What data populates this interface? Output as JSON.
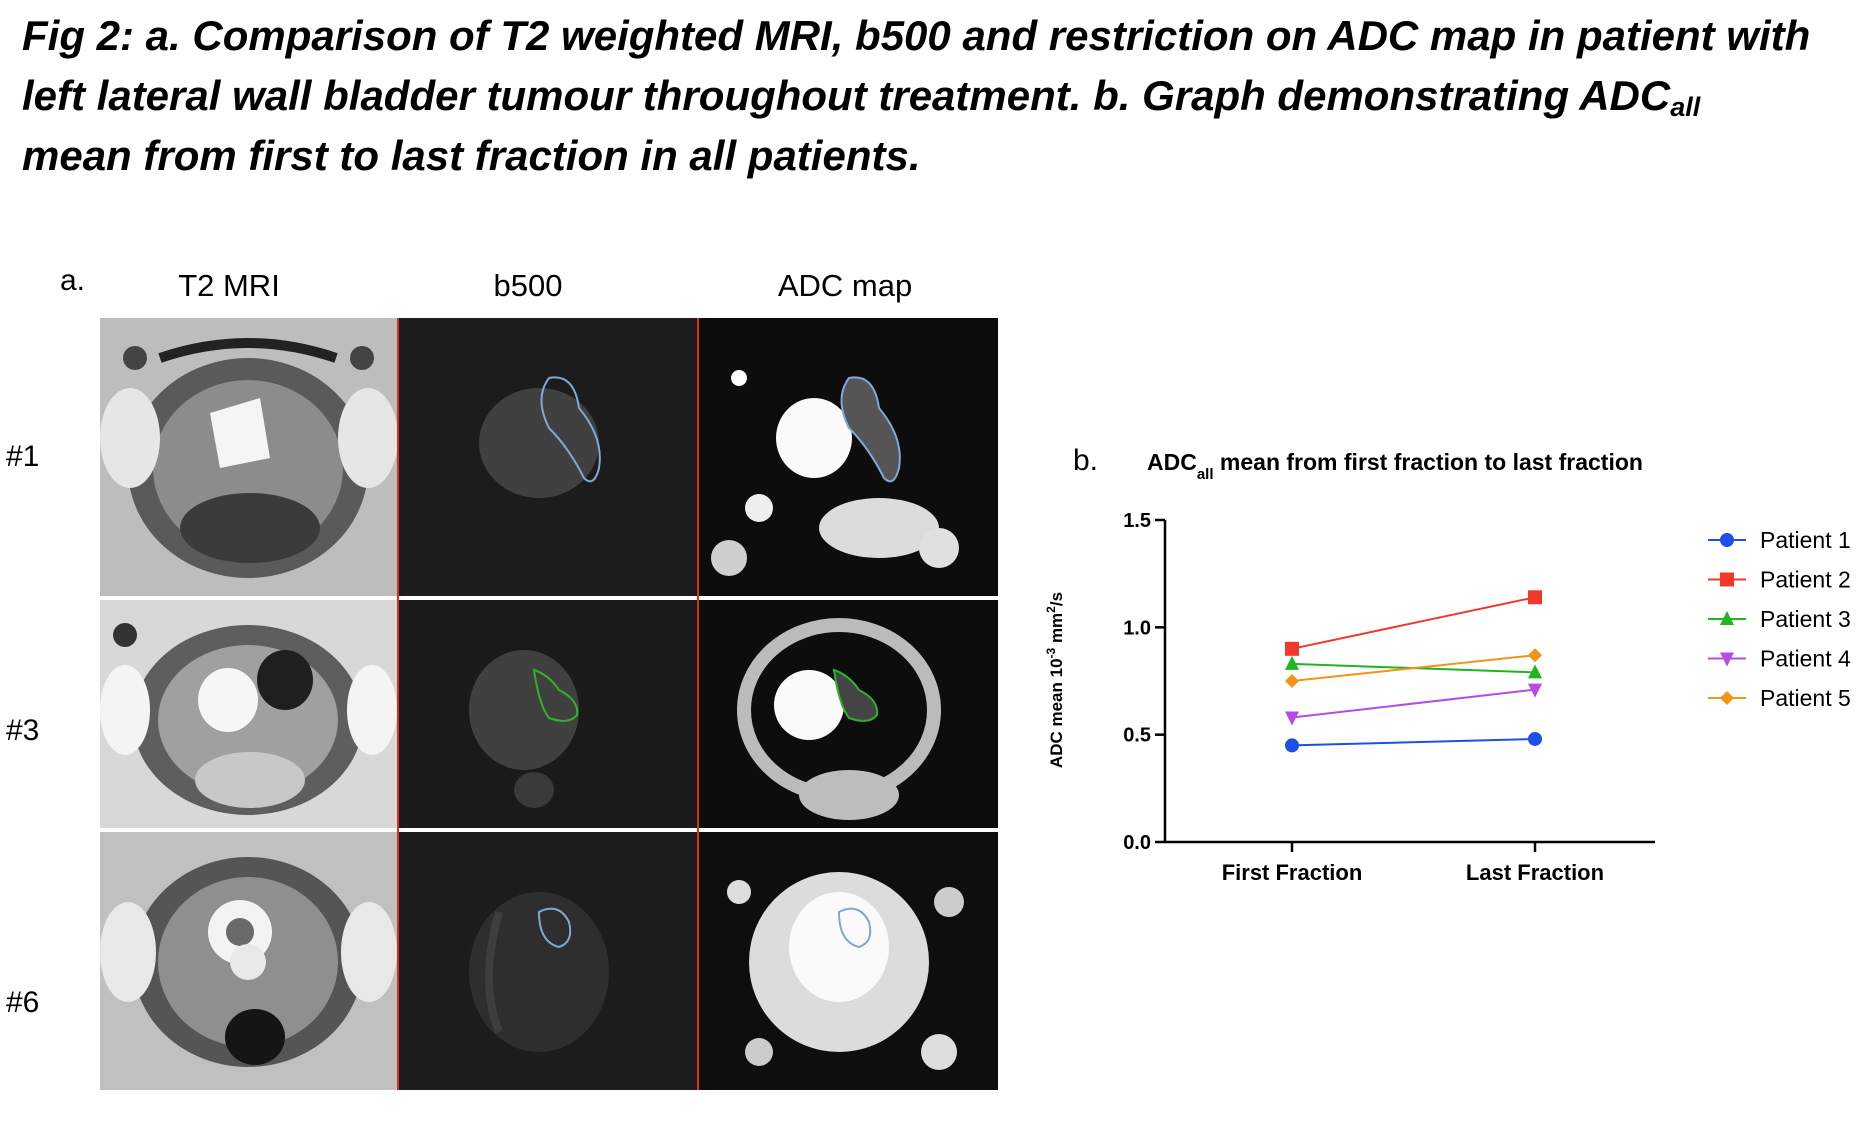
{
  "caption": {
    "line1": "Fig 2: a. Comparison of T2 weighted MRI, b500 and restriction on ADC map in patient with",
    "line2_pre": "left lateral wall bladder tumour throughout treatment. b. Graph demonstrating ADC",
    "line2_sub": "all",
    "line3": "mean from first to last fraction in all patients."
  },
  "panel_a": {
    "label": "a.",
    "columns": [
      "T2 MRI",
      "b500",
      "ADC map"
    ],
    "rows": [
      "#1",
      "#3",
      "#6"
    ],
    "contour_colors": [
      "#7fa8d6",
      "#2fb12f",
      "#7fa8d6"
    ]
  },
  "panel_b": {
    "label": "b."
  },
  "chart_data": {
    "type": "line",
    "title_main": "ADC",
    "title_sub": "all",
    "title_rest": " mean from first fraction to last fraction",
    "ylabel_pre": "ADC mean 10",
    "ylabel_sup": "-3",
    "ylabel_mid": " mm",
    "ylabel_sup2": "2",
    "ylabel_post": "/s",
    "categories": [
      "First Fraction",
      "Last Fraction"
    ],
    "ylim": [
      0.0,
      1.5
    ],
    "yticks": [
      "0.0",
      "0.5",
      "1.0",
      "1.5"
    ],
    "ytick_values": [
      0.0,
      0.5,
      1.0,
      1.5
    ],
    "legend_position": "right",
    "grid": false,
    "series": [
      {
        "name": "Patient 1",
        "values": [
          0.45,
          0.48
        ],
        "color": "#1f4fe6",
        "marker": "circle"
      },
      {
        "name": "Patient 2",
        "values": [
          0.9,
          1.14
        ],
        "color": "#f0392b",
        "marker": "square"
      },
      {
        "name": "Patient 3",
        "values": [
          0.83,
          0.79
        ],
        "color": "#1fb51f",
        "marker": "triangle-up"
      },
      {
        "name": "Patient 4",
        "values": [
          0.58,
          0.71
        ],
        "color": "#b84ae6",
        "marker": "triangle-down"
      },
      {
        "name": "Patient 5",
        "values": [
          0.75,
          0.87
        ],
        "color": "#f29418",
        "marker": "diamond"
      }
    ]
  }
}
